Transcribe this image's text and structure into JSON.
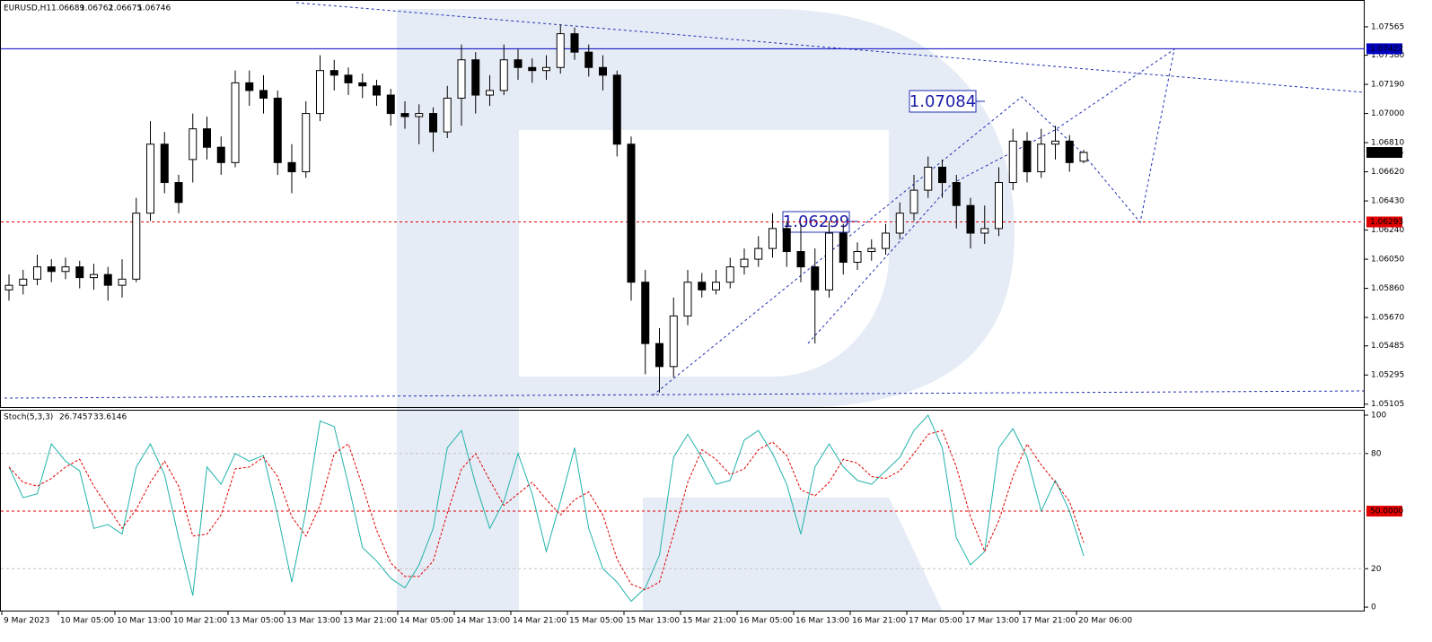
{
  "chart_data": [
    {
      "type": "candlestick",
      "title": "EURUSD,H1",
      "candles": [
        [
          1.0585,
          1.0595,
          1.0578,
          1.0588
        ],
        [
          1.0588,
          1.0598,
          1.0582,
          1.0592
        ],
        [
          1.0592,
          1.0608,
          1.0588,
          1.06
        ],
        [
          1.06,
          1.0605,
          1.059,
          1.0597
        ],
        [
          1.0597,
          1.0606,
          1.0592,
          1.06
        ],
        [
          1.06,
          1.0604,
          1.0586,
          1.0593
        ],
        [
          1.0593,
          1.0602,
          1.0585,
          1.0595
        ],
        [
          1.0595,
          1.06,
          1.0578,
          1.0588
        ],
        [
          1.0588,
          1.0605,
          1.058,
          1.0592
        ],
        [
          1.0592,
          1.0645,
          1.059,
          1.0635
        ],
        [
          1.0635,
          1.0695,
          1.063,
          1.068
        ],
        [
          1.068,
          1.0688,
          1.0648,
          1.0655
        ],
        [
          1.0655,
          1.066,
          1.0635,
          1.0642
        ],
        [
          1.067,
          1.07,
          1.0655,
          1.069
        ],
        [
          1.069,
          1.0698,
          1.067,
          1.0678
        ],
        [
          1.0678,
          1.0685,
          1.066,
          1.0668
        ],
        [
          1.0668,
          1.0728,
          1.0665,
          1.072
        ],
        [
          1.072,
          1.0728,
          1.0705,
          1.0715
        ],
        [
          1.0715,
          1.0725,
          1.07,
          1.071
        ],
        [
          1.071,
          1.0715,
          1.066,
          1.0668
        ],
        [
          1.0668,
          1.068,
          1.0648,
          1.0662
        ],
        [
          1.0662,
          1.0708,
          1.0658,
          1.07
        ],
        [
          1.07,
          1.0738,
          1.0695,
          1.0728
        ],
        [
          1.0728,
          1.0735,
          1.0715,
          1.0725
        ],
        [
          1.0725,
          1.073,
          1.0712,
          1.072
        ],
        [
          1.072,
          1.0726,
          1.071,
          1.0718
        ],
        [
          1.0718,
          1.0722,
          1.0705,
          1.0712
        ],
        [
          1.0712,
          1.0716,
          1.0692,
          1.07
        ],
        [
          1.07,
          1.0708,
          1.069,
          1.0698
        ],
        [
          1.0698,
          1.0706,
          1.068,
          1.07
        ],
        [
          1.07,
          1.0704,
          1.0675,
          1.0688
        ],
        [
          1.0688,
          1.0718,
          1.0684,
          1.071
        ],
        [
          1.071,
          1.0745,
          1.0692,
          1.0735
        ],
        [
          1.0735,
          1.074,
          1.07,
          1.0712
        ],
        [
          1.0712,
          1.0725,
          1.0705,
          1.0715
        ],
        [
          1.0715,
          1.0745,
          1.0712,
          1.0735
        ],
        [
          1.0735,
          1.0742,
          1.0722,
          1.073
        ],
        [
          1.073,
          1.0736,
          1.072,
          1.0728
        ],
        [
          1.0728,
          1.0738,
          1.0722,
          1.073
        ],
        [
          1.073,
          1.0758,
          1.0726,
          1.0752
        ],
        [
          1.0752,
          1.0756,
          1.0735,
          1.074
        ],
        [
          1.074,
          1.0745,
          1.0724,
          1.073
        ],
        [
          1.073,
          1.0738,
          1.0715,
          1.0725
        ],
        [
          1.0725,
          1.0728,
          1.0672,
          1.068
        ],
        [
          1.068,
          1.0685,
          1.0578,
          1.059
        ],
        [
          1.059,
          1.0598,
          1.053,
          1.055
        ],
        [
          1.055,
          1.056,
          1.0518,
          1.0535
        ],
        [
          1.0535,
          1.058,
          1.0528,
          1.0568
        ],
        [
          1.0568,
          1.0598,
          1.0562,
          1.059
        ],
        [
          1.059,
          1.0596,
          1.058,
          1.0585
        ],
        [
          1.0585,
          1.0598,
          1.0582,
          1.059
        ],
        [
          1.059,
          1.0606,
          1.0586,
          1.06
        ],
        [
          1.06,
          1.0612,
          1.0595,
          1.0605
        ],
        [
          1.0605,
          1.062,
          1.06,
          1.0612
        ],
        [
          1.0612,
          1.0635,
          1.0606,
          1.0625
        ],
        [
          1.0625,
          1.063,
          1.06,
          1.061
        ],
        [
          1.061,
          1.0628,
          1.059,
          1.06
        ],
        [
          1.06,
          1.0612,
          1.055,
          1.0585
        ],
        [
          1.0585,
          1.063,
          1.058,
          1.0622
        ],
        [
          1.0622,
          1.0628,
          1.0595,
          1.0603
        ],
        [
          1.0603,
          1.0616,
          1.0598,
          1.061
        ],
        [
          1.061,
          1.0618,
          1.0604,
          1.0612
        ],
        [
          1.0612,
          1.0628,
          1.0608,
          1.0622
        ],
        [
          1.0622,
          1.0642,
          1.0618,
          1.0635
        ],
        [
          1.0635,
          1.066,
          1.063,
          1.065
        ],
        [
          1.065,
          1.0672,
          1.0645,
          1.0665
        ],
        [
          1.0665,
          1.067,
          1.0645,
          1.0655
        ],
        [
          1.0655,
          1.066,
          1.0625,
          1.064
        ],
        [
          1.064,
          1.0645,
          1.0612,
          1.0622
        ],
        [
          1.0622,
          1.064,
          1.0615,
          1.0625
        ],
        [
          1.0625,
          1.0665,
          1.062,
          1.0655
        ],
        [
          1.0655,
          1.069,
          1.065,
          1.0682
        ],
        [
          1.0682,
          1.0688,
          1.0655,
          1.0662
        ],
        [
          1.0662,
          1.069,
          1.0658,
          1.068
        ],
        [
          1.068,
          1.0692,
          1.067,
          1.0682
        ],
        [
          1.0682,
          1.0686,
          1.0662,
          1.0668
        ],
        [
          1.06689,
          1.06762,
          1.06675,
          1.06746
        ]
      ],
      "ylim": [
        1.0508,
        1.0774
      ],
      "yticks": [
        1.07565,
        {
          "value": 1.0738,
          "label": "1.07380"
        },
        {
          "value": 1.0719,
          "label": "1.07190"
        },
        {
          "value": 1.07,
          "label": "1.07000"
        },
        {
          "value": 1.0681,
          "label": "1.06810"
        },
        {
          "value": 1.0662,
          "label": "1.06620"
        },
        {
          "value": 1.0643,
          "label": "1.06430"
        },
        {
          "value": 1.0624,
          "label": "1.06240"
        },
        {
          "value": 1.0605,
          "label": "1.06050"
        },
        {
          "value": 1.0586,
          "label": "1.05860"
        },
        {
          "value": 1.0567,
          "label": "1.05670"
        },
        1.05485,
        1.05295,
        1.05105
      ],
      "levels": [
        {
          "value": 1.07422,
          "color": "#0000c0"
        },
        {
          "value": 1.06293,
          "color": "#e00000"
        }
      ],
      "annotations": [
        "1.07084",
        "1.06299"
      ],
      "x_labels": [
        "9 Mar 2023",
        "10 Mar 05:00",
        "10 Mar 13:00",
        "10 Mar 21:00",
        "13 Mar 05:00",
        "13 Mar 13:00",
        "13 Mar 21:00",
        "14 Mar 05:00",
        "14 Mar 13:00",
        "14 Mar 21:00",
        "15 Mar 05:00",
        "15 Mar 13:00",
        "15 Mar 21:00",
        "16 Mar 05:00",
        "16 Mar 13:00",
        "16 Mar 21:00",
        "17 Mar 05:00",
        "17 Mar 13:00",
        "17 Mar 21:00",
        "20 Mar 06:00"
      ]
    },
    {
      "type": "line",
      "title": "Stoch(5,3,3)",
      "readings": [
        26.7457,
        33.6146
      ],
      "series": [
        {
          "color": "#20b2aa",
          "values": [
            73,
            57,
            59,
            85,
            76,
            71,
            41,
            43,
            38,
            73,
            85,
            69,
            36,
            6,
            73,
            64,
            80,
            76,
            79,
            48,
            13,
            50,
            97,
            94,
            64,
            31,
            24,
            15,
            10,
            22,
            41,
            83,
            92,
            64,
            41,
            55,
            80,
            59,
            29,
            55,
            83,
            41,
            20,
            13,
            3,
            10,
            27,
            78,
            90,
            78,
            64,
            66,
            87,
            92,
            80,
            64,
            38,
            73,
            85,
            73,
            66,
            64,
            71,
            78,
            92,
            100,
            83,
            36,
            22,
            29,
            83,
            93,
            78,
            50,
            66,
            50,
            26.7457
          ]
        },
        {
          "color": "#e00000",
          "dashed": true,
          "values": [
            73,
            65,
            63,
            67,
            73,
            77,
            63,
            52,
            41,
            51,
            65,
            76,
            63,
            37,
            38,
            48,
            72,
            73,
            78,
            68,
            47,
            37,
            53,
            80,
            85,
            63,
            40,
            23,
            16,
            16,
            24,
            49,
            72,
            80,
            66,
            53,
            59,
            65,
            56,
            48,
            56,
            60,
            48,
            25,
            12,
            9,
            13,
            38,
            65,
            82,
            77,
            69,
            72,
            82,
            86,
            79,
            61,
            58,
            65,
            77,
            75,
            68,
            67,
            71,
            80,
            90,
            92,
            73,
            47,
            29,
            45,
            68,
            85,
            74,
            65,
            55,
            33.6146
          ]
        }
      ],
      "ylim": [
        -2.3,
        102.8
      ],
      "yticks": [
        100,
        80,
        20,
        0
      ],
      "levels": [
        {
          "value": 80,
          "color": "#c0c0c0"
        },
        {
          "value": 50,
          "label": "50.0000",
          "color": "#e00000"
        },
        {
          "value": 20,
          "color": "#c0c0c0"
        }
      ]
    }
  ]
}
